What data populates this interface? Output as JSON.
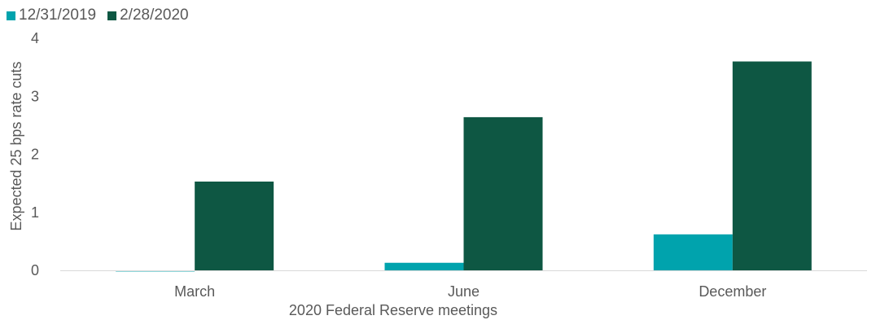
{
  "chart_data": {
    "type": "bar",
    "categories": [
      "March",
      "June",
      "December"
    ],
    "series": [
      {
        "name": "12/31/2019",
        "color": "#00A3AD",
        "values": [
          -0.02,
          0.13,
          0.62
        ]
      },
      {
        "name": "2/28/2020",
        "color": "#0E5743",
        "values": [
          1.53,
          2.64,
          3.6
        ]
      }
    ],
    "title": "",
    "xlabel": "2020 Federal Reserve meetings",
    "ylabel": "Expected 25 bps rate cuts",
    "ylim": [
      0,
      4
    ],
    "yticks": [
      0,
      1,
      2,
      3,
      4
    ],
    "grid": false,
    "legend": "top-left"
  }
}
